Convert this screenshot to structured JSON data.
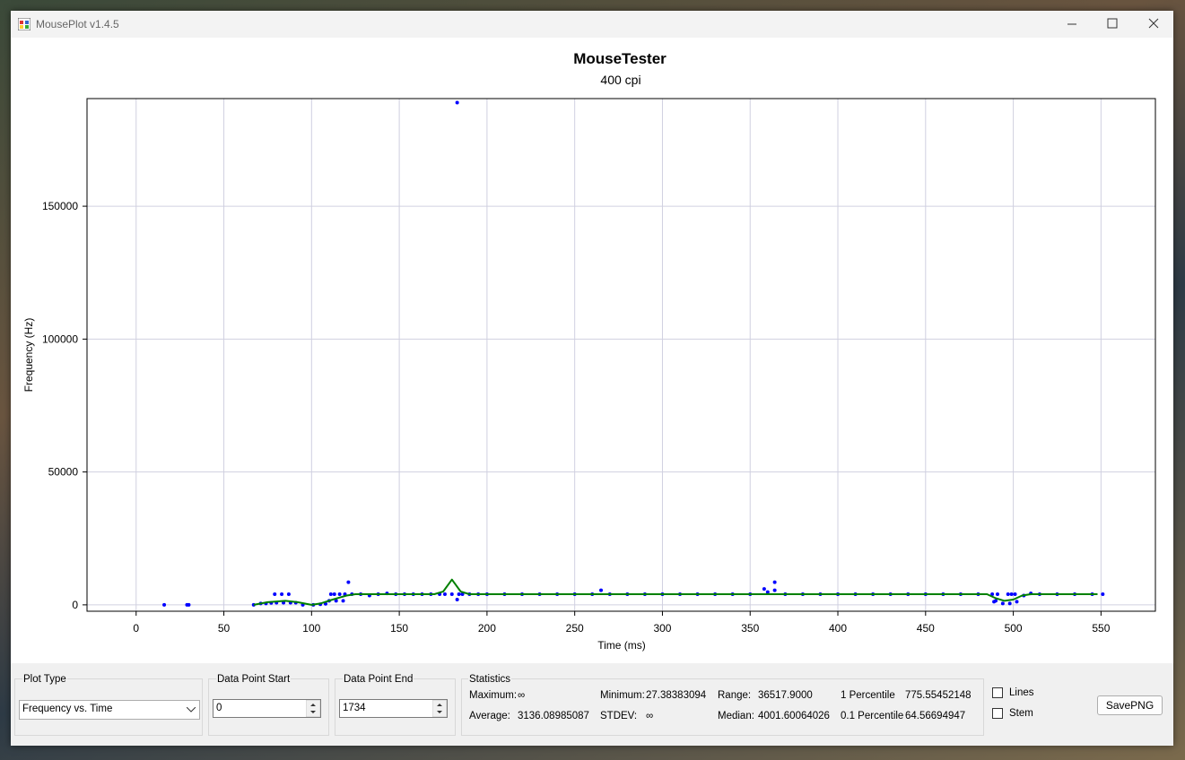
{
  "window": {
    "title": "MousePlot v1.4.5"
  },
  "chart_data": {
    "type": "scatter",
    "title": "MouseTester",
    "subtitle": "400 cpi",
    "x_label": "Time (ms)",
    "y_label": "Frequency (Hz)",
    "xlim": [
      -28,
      581
    ],
    "ylim": [
      -2400,
      190500
    ],
    "xticks": [
      0,
      50,
      100,
      150,
      200,
      250,
      300,
      350,
      400,
      450,
      500,
      550
    ],
    "yticks": [
      0,
      50000,
      100000,
      150000
    ],
    "grid": true,
    "series": [
      {
        "type": "scatter",
        "color": "#0000ff",
        "x": [
          16,
          29,
          30,
          67,
          71,
          74,
          77,
          79,
          80,
          83,
          84,
          87,
          88,
          91,
          95,
          101,
          105,
          108,
          110,
          111,
          113,
          114,
          116,
          118,
          119,
          121,
          123,
          128,
          133,
          138,
          143,
          148,
          153,
          158,
          163,
          168,
          173,
          176,
          180,
          183,
          183,
          184,
          186,
          190,
          195,
          200,
          210,
          220,
          230,
          240,
          250,
          260,
          265,
          270,
          280,
          290,
          300,
          310,
          320,
          330,
          340,
          350,
          358,
          360,
          364,
          364,
          370,
          380,
          390,
          400,
          410,
          420,
          430,
          440,
          450,
          460,
          470,
          480,
          488,
          489,
          490,
          491,
          494,
          497,
          498,
          499,
          501,
          502,
          506,
          510,
          515,
          525,
          535,
          545,
          551
        ],
        "values": [
          0,
          0,
          0,
          0,
          500,
          500,
          700,
          4000,
          800,
          4000,
          800,
          4000,
          800,
          800,
          0,
          0,
          200,
          400,
          1500,
          4000,
          4000,
          1500,
          4000,
          1500,
          4000,
          8500,
          4000,
          4000,
          3500,
          4000,
          4300,
          4000,
          4000,
          4000,
          4000,
          4000,
          4000,
          4000,
          4000,
          189000,
          2000,
          4000,
          4000,
          4000,
          4000,
          4000,
          4000,
          4000,
          4000,
          4000,
          4000,
          4000,
          5500,
          4000,
          4000,
          4000,
          4000,
          4000,
          4000,
          4000,
          4000,
          4000,
          6000,
          4800,
          8500,
          5500,
          4000,
          4000,
          4000,
          4000,
          4000,
          4000,
          4000,
          4000,
          4000,
          4000,
          4000,
          4000,
          4000,
          1200,
          1500,
          4000,
          500,
          4000,
          500,
          4000,
          4000,
          1200,
          3500,
          4300,
          4000,
          4000,
          4000,
          4000,
          4000
        ]
      },
      {
        "type": "line",
        "color": "#008000",
        "x": [
          67,
          75,
          85,
          92,
          100,
          105,
          112,
          120,
          125,
          170,
          175,
          180,
          185,
          190,
          485,
          490,
          495,
          500,
          505,
          510,
          548
        ],
        "values": [
          0,
          1000,
          1500,
          1000,
          0,
          500,
          2000,
          3500,
          4000,
          4000,
          5000,
          9500,
          5000,
          4000,
          4000,
          2500,
          1500,
          2000,
          3500,
          4000,
          4000
        ]
      }
    ]
  },
  "controls": {
    "plot_type": {
      "label": "Plot Type",
      "value": "Frequency vs. Time"
    },
    "start": {
      "label": "Data Point Start",
      "value": "0"
    },
    "end": {
      "label": "Data Point End",
      "value": "1734"
    },
    "statistics": {
      "title": "Statistics",
      "items": [
        {
          "label": "Maximum:",
          "value": "∞"
        },
        {
          "label": "Minimum:",
          "value": "27.38383094"
        },
        {
          "label": "Range:",
          "value": "36517.9000"
        },
        {
          "label": "1 Percentile",
          "value": "775.55452148"
        },
        {
          "label": "Average:",
          "value": "3136.08985087"
        },
        {
          "label": "STDEV:",
          "value": "∞"
        },
        {
          "label": "Median:",
          "value": "4001.60064026"
        },
        {
          "label": "0.1 Percentile",
          "value": "64.56694947"
        }
      ]
    },
    "lines": "Lines",
    "stem": "Stem",
    "save": "SavePNG"
  }
}
